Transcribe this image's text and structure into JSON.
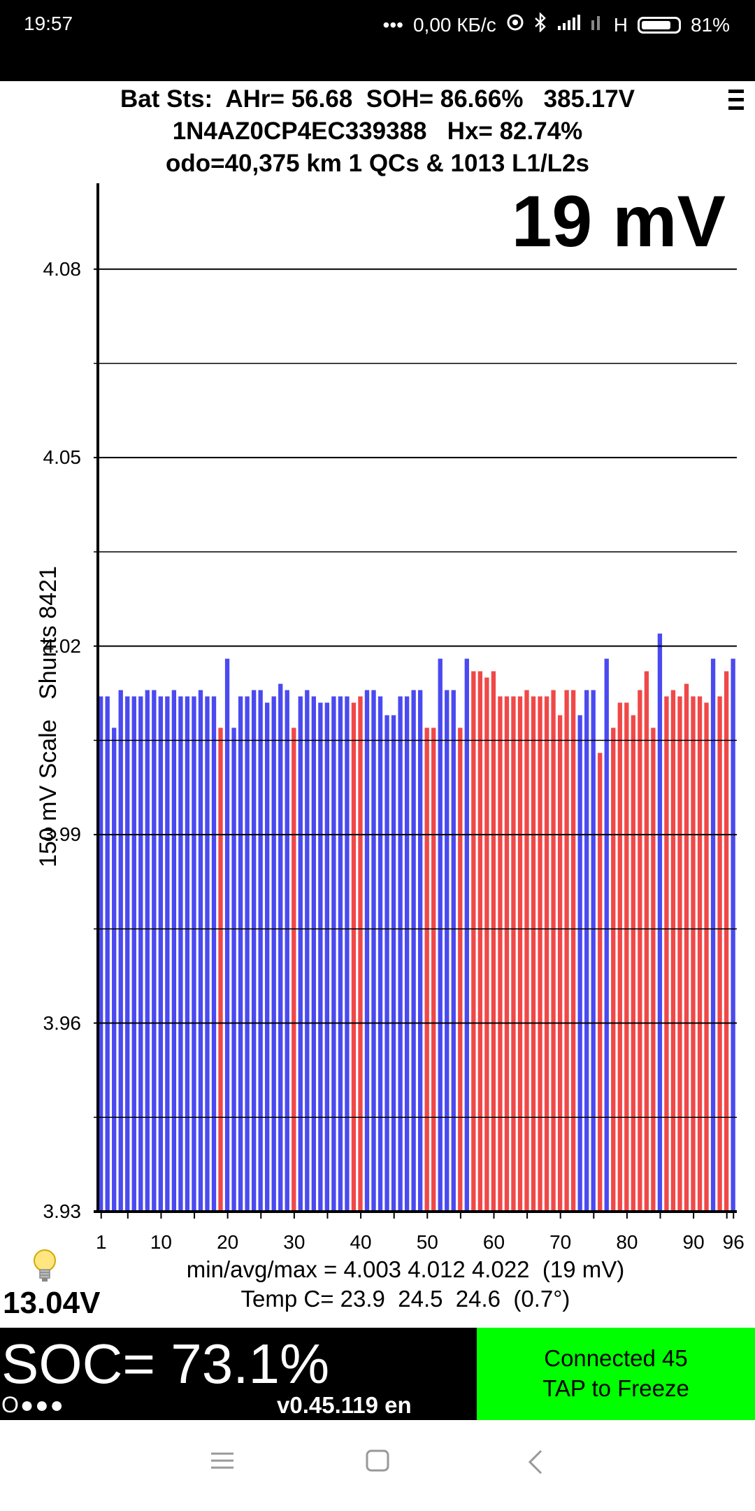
{
  "status_bar": {
    "time": "19:57",
    "dots": "•••",
    "net_speed": "0,00 КБ/с",
    "network": "H",
    "battery": "81%",
    "battery_level": 0.81
  },
  "header": {
    "line1": "Bat Sts:  AHr= 56.68  SOH= 86.66%   385.17V",
    "line2": "1N4AZ0CP4EC339388   Hx= 82.74%",
    "line3": "odo=40,375 km 1 QCs & 1013 L1/L2s"
  },
  "chart_data": {
    "type": "bar",
    "big_label": "19 mV",
    "ylabel": "150 mV Scale   Shunts 8421",
    "ylim": [
      3.93,
      4.095
    ],
    "y_ticks": [
      "4.08",
      "4.05",
      "4.02",
      "3.99",
      "3.96",
      "3.93"
    ],
    "y_tick_values": [
      4.08,
      4.05,
      4.02,
      3.99,
      3.96,
      3.93
    ],
    "minor_grid": [
      4.065,
      4.035,
      4.005,
      3.975,
      3.945
    ],
    "x_ticks": [
      "1",
      "10",
      "20",
      "30",
      "40",
      "50",
      "60",
      "70",
      "80",
      "90",
      "96"
    ],
    "x_tick_values": [
      1,
      10,
      20,
      30,
      40,
      50,
      60,
      70,
      80,
      90,
      96
    ],
    "bar_colors": {
      "blue": "#4a4af0",
      "red": "#f04848"
    },
    "cells": [
      1,
      2,
      3,
      4,
      5,
      6,
      7,
      8,
      9,
      10,
      11,
      12,
      13,
      14,
      15,
      16,
      17,
      18,
      19,
      20,
      21,
      22,
      23,
      24,
      25,
      26,
      27,
      28,
      29,
      30,
      31,
      32,
      33,
      34,
      35,
      36,
      37,
      38,
      39,
      40,
      41,
      42,
      43,
      44,
      45,
      46,
      47,
      48,
      49,
      50,
      51,
      52,
      53,
      54,
      55,
      56,
      57,
      58,
      59,
      60,
      61,
      62,
      63,
      64,
      65,
      66,
      67,
      68,
      69,
      70,
      71,
      72,
      73,
      74,
      75,
      76,
      77,
      78,
      79,
      80,
      81,
      82,
      83,
      84,
      85,
      86,
      87,
      88,
      89,
      90,
      91,
      92,
      93,
      94,
      95,
      96
    ],
    "values": [
      4.012,
      4.012,
      4.007,
      4.013,
      4.012,
      4.012,
      4.012,
      4.013,
      4.013,
      4.012,
      4.012,
      4.013,
      4.012,
      4.012,
      4.012,
      4.013,
      4.012,
      4.012,
      4.007,
      4.018,
      4.007,
      4.012,
      4.012,
      4.013,
      4.013,
      4.011,
      4.012,
      4.014,
      4.013,
      4.007,
      4.012,
      4.013,
      4.012,
      4.011,
      4.011,
      4.012,
      4.012,
      4.012,
      4.011,
      4.012,
      4.013,
      4.013,
      4.012,
      4.009,
      4.009,
      4.012,
      4.012,
      4.013,
      4.013,
      4.007,
      4.007,
      4.018,
      4.013,
      4.013,
      4.007,
      4.018,
      4.016,
      4.016,
      4.015,
      4.016,
      4.012,
      4.012,
      4.012,
      4.012,
      4.013,
      4.012,
      4.012,
      4.012,
      4.013,
      4.009,
      4.013,
      4.013,
      4.009,
      4.013,
      4.013,
      4.003,
      4.018,
      4.007,
      4.011,
      4.011,
      4.009,
      4.013,
      4.016,
      4.007,
      4.022,
      4.012,
      4.013,
      4.012,
      4.014,
      4.012,
      4.012,
      4.011,
      4.018,
      4.012,
      4.016,
      4.018
    ],
    "colors": [
      "b",
      "b",
      "b",
      "b",
      "b",
      "b",
      "b",
      "b",
      "b",
      "b",
      "b",
      "b",
      "b",
      "b",
      "b",
      "b",
      "b",
      "b",
      "r",
      "b",
      "b",
      "b",
      "b",
      "b",
      "b",
      "b",
      "b",
      "b",
      "b",
      "r",
      "b",
      "b",
      "b",
      "b",
      "b",
      "b",
      "b",
      "b",
      "r",
      "r",
      "b",
      "b",
      "b",
      "b",
      "b",
      "b",
      "b",
      "b",
      "b",
      "r",
      "r",
      "b",
      "b",
      "b",
      "r",
      "b",
      "r",
      "r",
      "r",
      "r",
      "r",
      "r",
      "r",
      "r",
      "r",
      "r",
      "r",
      "r",
      "r",
      "r",
      "r",
      "r",
      "b",
      "b",
      "b",
      "r",
      "b",
      "r",
      "r",
      "r",
      "r",
      "r",
      "r",
      "r",
      "b",
      "r",
      "r",
      "r",
      "r",
      "r",
      "r",
      "r",
      "b",
      "r",
      "r",
      "b"
    ]
  },
  "stats": {
    "line1": "min/avg/max = 4.003 4.012 4.022  (19 mV)",
    "line2": "Temp C= 23.9  24.5  24.6  (0.7°)"
  },
  "aux_voltage": "13.04V",
  "footer": {
    "soc": "SOC= 73.1%",
    "dots": "O●●●",
    "version": "v0.45.119 en",
    "connected": "Connected 45",
    "tap": "TAP to Freeze",
    "connected_color": "#00ff00"
  }
}
